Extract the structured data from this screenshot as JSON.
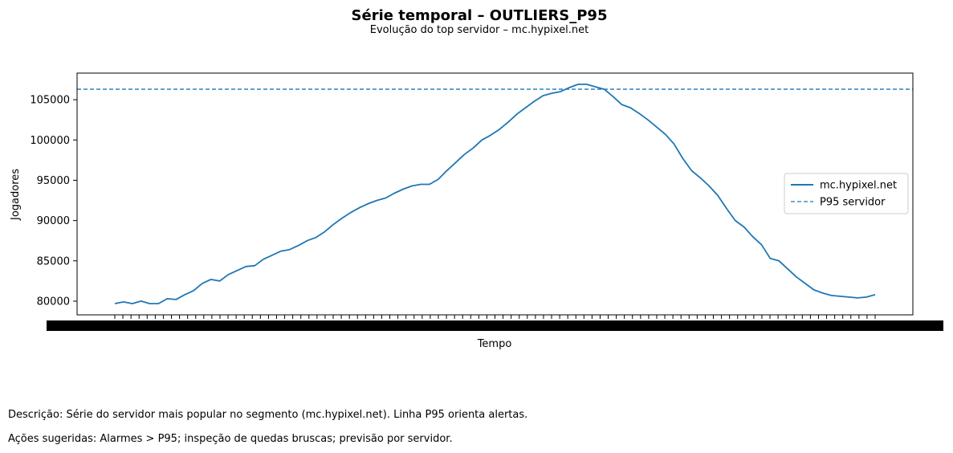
{
  "colors": {
    "series": "#1f77b4",
    "axes": "#000000",
    "background": "#ffffff"
  },
  "chart_data": {
    "type": "line",
    "title": "Série temporal – OUTLIERS_P95",
    "subtitle": "Evolução do top servidor – mc.hypixel.net",
    "xlabel": "Tempo",
    "ylabel": "Jogadores",
    "ylim": [
      78300,
      108300
    ],
    "yticks": [
      80000,
      85000,
      90000,
      95000,
      100000,
      105000
    ],
    "x_tick_labels_note": "overlapping unreadable tick labels",
    "grid": false,
    "legend_position": "center-right",
    "series": [
      {
        "name": "mc.hypixel.net",
        "style": "solid",
        "values": [
          79700,
          79900,
          79700,
          80000,
          79700,
          79700,
          80300,
          80200,
          80800,
          81300,
          82200,
          82700,
          82500,
          83300,
          83800,
          84300,
          84400,
          85200,
          85700,
          86200,
          86400,
          86900,
          87500,
          87900,
          88600,
          89500,
          90300,
          91000,
          91600,
          92100,
          92500,
          92800,
          93400,
          93900,
          94300,
          94500,
          94500,
          95100,
          96200,
          97200,
          98200,
          99000,
          100000,
          100600,
          101300,
          102200,
          103200,
          104000,
          104800,
          105500,
          105800,
          106000,
          106500,
          106900,
          106900,
          106600,
          106300,
          105400,
          104400,
          104000,
          103300,
          102500,
          101600,
          100700,
          99500,
          97700,
          96200,
          95300,
          94300,
          93100,
          91500,
          90000,
          89200,
          88000,
          87000,
          85300,
          85000,
          84000,
          83000,
          82200,
          81400,
          81000,
          80700,
          80600,
          80500,
          80400,
          80500,
          80800
        ]
      },
      {
        "name": "P95 servidor",
        "style": "dashed",
        "value": 106300
      }
    ]
  },
  "description": "Descrição: Série do servidor mais popular no segmento (mc.hypixel.net). Linha P95 orienta alertas.",
  "actions": "Ações sugeridas: Alarmes > P95; inspeção de quedas bruscas; previsão por servidor."
}
